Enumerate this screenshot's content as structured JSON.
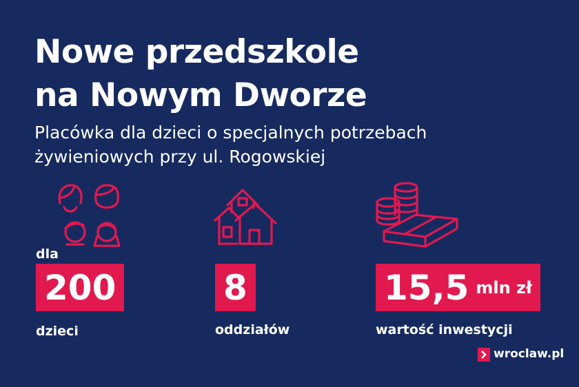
{
  "header": {
    "title_lines": [
      "Nowe przedszkole",
      "na Nowym Dworze"
    ],
    "subtitle_lines": [
      "Placówka dla dzieci o specjalnych potrzebach",
      "żywieniowych przy ul. Rogowskiej"
    ]
  },
  "stats": [
    {
      "prefix": "dla",
      "value": "200",
      "label": "dzieci"
    },
    {
      "value": "8",
      "label": "oddziałów"
    },
    {
      "value": "15,5",
      "unit": "mln zł",
      "label": "wartość inwestycji"
    }
  ],
  "footer": {
    "logo": "wroclaw.pl"
  }
}
